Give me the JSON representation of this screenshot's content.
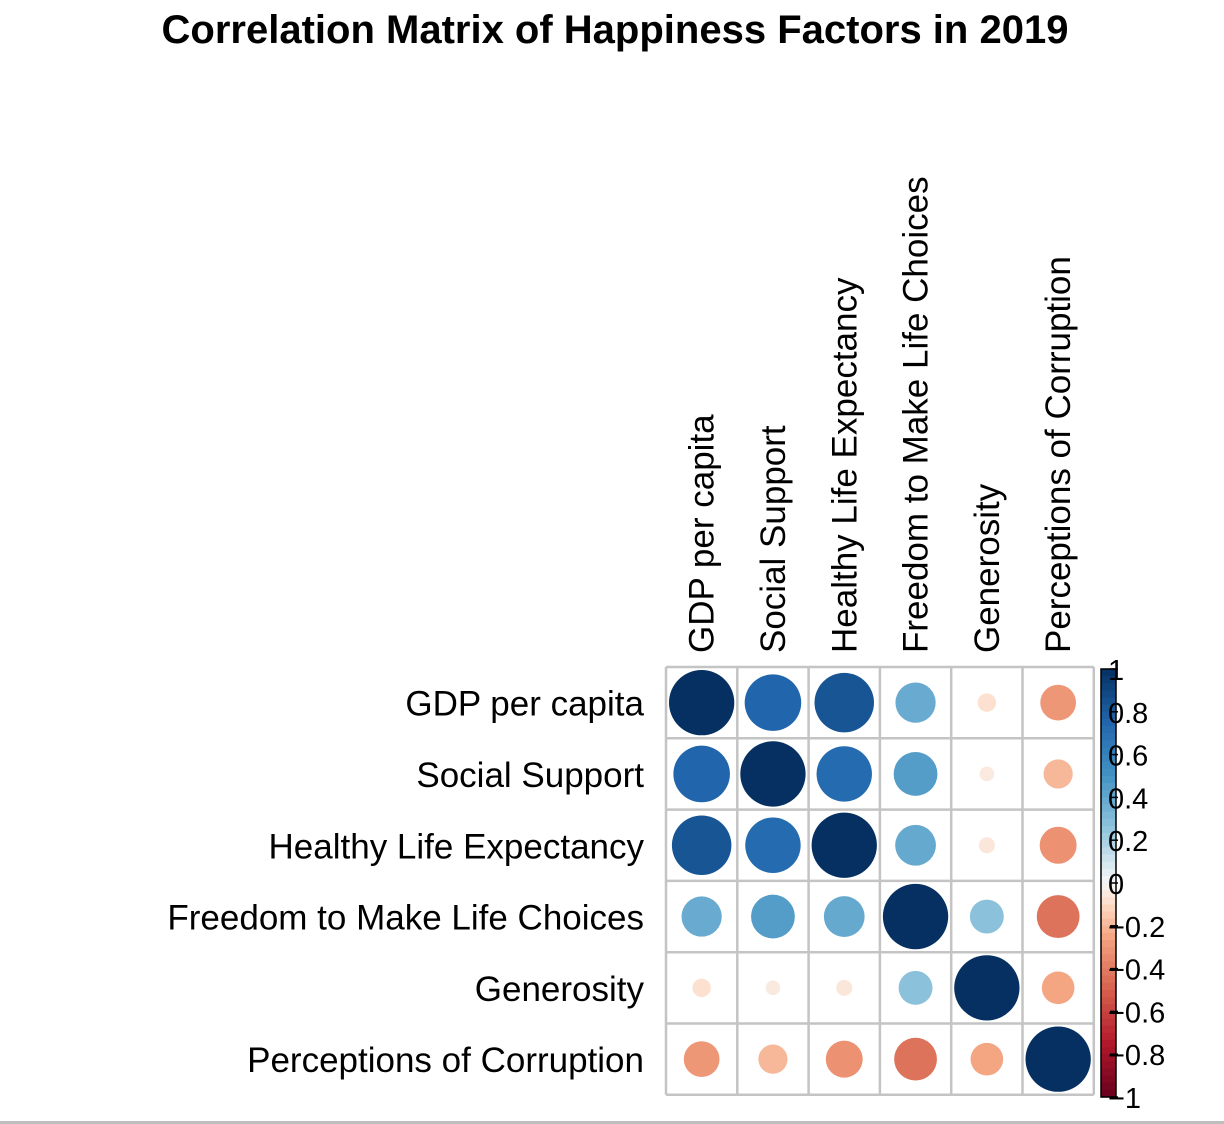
{
  "chart_data": {
    "type": "heatmap",
    "title": "Correlation Matrix of Happiness Factors in 2019",
    "variables": [
      "GDP per capita",
      "Social Support",
      "Healthy Life Expectancy",
      "Freedom to Make Life Choices",
      "Generosity",
      "Perceptions of Corruption"
    ],
    "matrix": [
      [
        1.0,
        0.75,
        0.83,
        0.38,
        -0.08,
        -0.3
      ],
      [
        0.75,
        1.0,
        0.72,
        0.45,
        -0.05,
        -0.2
      ],
      [
        0.83,
        0.72,
        1.0,
        0.39,
        -0.06,
        -0.32
      ],
      [
        0.38,
        0.45,
        0.39,
        1.0,
        0.27,
        -0.43
      ],
      [
        -0.08,
        -0.05,
        -0.06,
        0.27,
        1.0,
        -0.25
      ],
      [
        -0.3,
        -0.2,
        -0.32,
        -0.43,
        -0.25,
        1.0
      ]
    ],
    "colorbar": {
      "range": [
        -1,
        1
      ],
      "ticks": [
        "1",
        "0.8",
        "0.6",
        "0.4",
        "0.2",
        "0",
        "−0.2",
        "−0.4",
        "−0.6",
        "−0.8",
        "−1"
      ],
      "low_color": "#67001f",
      "mid_color": "#f7f7f7",
      "high_color": "#053061"
    },
    "grid": true
  }
}
